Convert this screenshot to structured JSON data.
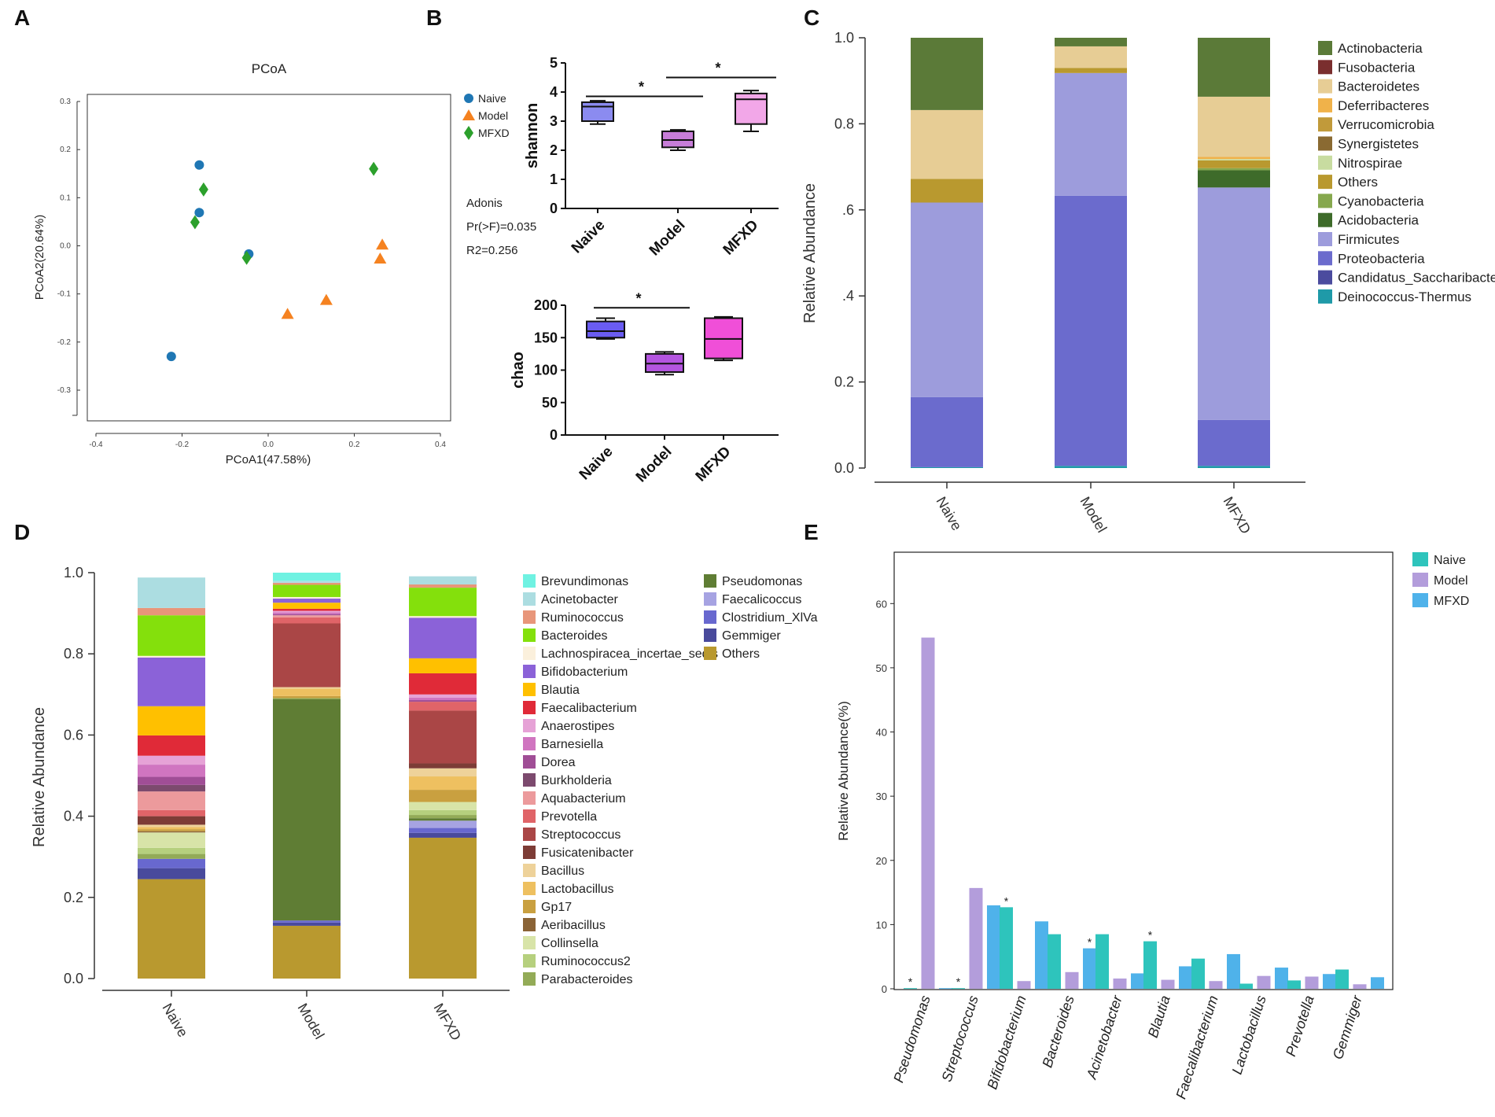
{
  "figure": {
    "panel_letters": [
      "A",
      "B",
      "C",
      "D",
      "E"
    ]
  },
  "chart_data": [
    {
      "id": "A",
      "type": "scatter",
      "title": "PCoA",
      "xlabel": "PCoA1(47.58%)",
      "ylabel": "PCoA2(20.64%)",
      "xlim": [
        -0.4,
        0.4
      ],
      "ylim": [
        -0.35,
        0.32
      ],
      "x_ticks": [
        -0.4,
        -0.2,
        0.0,
        0.2,
        0.4
      ],
      "x_tick_labels": [
        "-0.4",
        "-0.2",
        "0.0",
        "0.2",
        "0.4"
      ],
      "y_ticks": [
        0.3,
        0.2,
        0.1,
        0.0,
        -0.1,
        -0.2,
        -0.3
      ],
      "y_tick_labels": [
        "0.3",
        "0.2",
        "0.1",
        "0.0",
        "-0.1",
        "-0.2",
        "-0.3"
      ],
      "legend_position": "top-right-outside",
      "series": [
        {
          "name": "Naive",
          "marker": "circle",
          "color": "#1f77b4",
          "x": [
            -0.16,
            -0.16,
            -0.045,
            -0.225
          ],
          "y": [
            0.168,
            0.069,
            -0.017,
            -0.23
          ]
        },
        {
          "name": "Model",
          "marker": "triangle",
          "color": "#f58220",
          "x": [
            0.265,
            0.26,
            0.045,
            0.135
          ],
          "y": [
            0.002,
            -0.027,
            -0.142,
            -0.113
          ]
        },
        {
          "name": "MFXD",
          "marker": "diamond",
          "color": "#2ca02c",
          "x": [
            -0.15,
            -0.17,
            -0.05,
            0.245
          ],
          "y": [
            0.117,
            0.049,
            -0.025,
            0.16
          ]
        }
      ],
      "annotation": [
        "Adonis",
        "Pr(>F)=0.035",
        "R2=0.256"
      ]
    },
    {
      "id": "B-top",
      "type": "box",
      "ylabel": "shannon",
      "ylim": [
        0,
        5
      ],
      "y_ticks": [
        0,
        1,
        2,
        3,
        4,
        5
      ],
      "categories": [
        "Naive",
        "Model",
        "MFXD"
      ],
      "boxes": [
        {
          "name": "Naive",
          "color": "#8b8bf0",
          "min": 2.9,
          "q1": 3.0,
          "median": 3.5,
          "q3": 3.65,
          "max": 3.7
        },
        {
          "name": "Model",
          "color": "#c77dd8",
          "min": 2.0,
          "q1": 2.1,
          "median": 2.35,
          "q3": 2.65,
          "max": 2.7
        },
        {
          "name": "MFXD",
          "color": "#f2a7e8",
          "min": 2.65,
          "q1": 2.9,
          "median": 3.75,
          "q3": 3.95,
          "max": 4.05
        }
      ],
      "significance": [
        {
          "from": "Naive",
          "to": "Model",
          "y": 3.85,
          "label": "*"
        },
        {
          "from": "Model",
          "to": "MFXD",
          "y": 4.5,
          "label": "*"
        }
      ]
    },
    {
      "id": "B-bottom",
      "type": "box",
      "ylabel": "chao",
      "ylim": [
        0,
        200
      ],
      "y_ticks": [
        0,
        50,
        100,
        150,
        200
      ],
      "categories": [
        "Naive",
        "Model",
        "MFXD"
      ],
      "boxes": [
        {
          "name": "Naive",
          "color": "#6a5cf2",
          "min": 148,
          "q1": 150,
          "median": 160,
          "q3": 175,
          "max": 180
        },
        {
          "name": "Model",
          "color": "#b455e0",
          "min": 93,
          "q1": 97,
          "median": 110,
          "q3": 125,
          "max": 128
        },
        {
          "name": "MFXD",
          "color": "#f04fd8",
          "min": 115,
          "q1": 118,
          "median": 148,
          "q3": 180,
          "max": 182
        }
      ],
      "significance": [
        {
          "from": "Naive",
          "to": "Model",
          "y": 196,
          "label": "*"
        }
      ]
    },
    {
      "id": "C",
      "type": "bar",
      "stacked": true,
      "ylabel": "Relative Abundance",
      "ylim": [
        0,
        1
      ],
      "y_ticks": [
        0,
        0.2,
        0.4,
        0.6,
        0.8,
        1.0
      ],
      "y_tick_labels": [
        "0.0",
        "0.2",
        ".4",
        ".6",
        "0.8",
        "1.0"
      ],
      "categories": [
        "Naive",
        "Model",
        "MFXD"
      ],
      "legend_position": "right",
      "series": [
        {
          "name": "Actinobacteria",
          "color": "#5b7a38",
          "values": [
            0.168,
            0.02,
            0.137
          ]
        },
        {
          "name": "Fusobacteria",
          "color": "#7a2e2e",
          "values": [
            0.0,
            0.0,
            0.0
          ]
        },
        {
          "name": "Bacteroidetes",
          "color": "#e7cd95",
          "values": [
            0.16,
            0.05,
            0.14
          ]
        },
        {
          "name": "Deferribacteres",
          "color": "#f0b24a",
          "values": [
            0.0,
            0.0,
            0.005
          ]
        },
        {
          "name": "Verrucomicrobia",
          "color": "#c19a3a",
          "values": [
            0.0,
            0.0,
            0.0
          ]
        },
        {
          "name": "Synergistetes",
          "color": "#8a6a32",
          "values": [
            0.0,
            0.0,
            0.0
          ]
        },
        {
          "name": "Nitrospirae",
          "color": "#c8dca0",
          "values": [
            0.0,
            0.0,
            0.003
          ]
        },
        {
          "name": "Others",
          "color": "#b9992f",
          "values": [
            0.055,
            0.012,
            0.018
          ]
        },
        {
          "name": "Cyanobacteria",
          "color": "#86a84e",
          "values": [
            0.0,
            0.0,
            0.005
          ]
        },
        {
          "name": "Acidobacteria",
          "color": "#3e6b2a",
          "values": [
            0.0,
            0.0,
            0.04
          ]
        },
        {
          "name": "Firmicutes",
          "color": "#9d9cdc",
          "values": [
            0.452,
            0.285,
            0.54
          ]
        },
        {
          "name": "Proteobacteria",
          "color": "#6b6bcd",
          "values": [
            0.163,
            0.628,
            0.107
          ]
        },
        {
          "name": "Candidatus_Saccharibacteria",
          "color": "#4b4b9e",
          "values": [
            0.0,
            0.0,
            0.0
          ]
        },
        {
          "name": "Deinococcus-Thermus",
          "color": "#1f9aa8",
          "values": [
            0.002,
            0.005,
            0.005
          ]
        }
      ]
    },
    {
      "id": "D",
      "type": "bar",
      "stacked": true,
      "ylabel": "Relative Abundance",
      "ylim": [
        0,
        1
      ],
      "y_ticks": [
        0,
        0.2,
        0.4,
        0.6,
        0.8,
        1.0
      ],
      "y_tick_labels": [
        "0.0",
        "0.2",
        "0.4",
        "0.6",
        "0.8",
        "1.0"
      ],
      "categories": [
        "Naive",
        "Model",
        "MFXD"
      ],
      "legend_position": "right",
      "series": [
        {
          "name": "Brevundimonas",
          "color": "#6ff2e2",
          "values": [
            0.0,
            0.02,
            0.0
          ]
        },
        {
          "name": "Acinetobacter",
          "color": "#acdde1",
          "values": [
            0.075,
            0.005,
            0.02
          ]
        },
        {
          "name": "Ruminococcus",
          "color": "#e8967a",
          "values": [
            0.018,
            0.005,
            0.008
          ]
        },
        {
          "name": "Bacteroides",
          "color": "#84e00c",
          "values": [
            0.1,
            0.03,
            0.07
          ]
        },
        {
          "name": "Lachnospiracea_incertae_sedis",
          "color": "#fbf0dc",
          "values": [
            0.004,
            0.004,
            0.004
          ]
        },
        {
          "name": "Bifidobacterium",
          "color": "#8b62d8",
          "values": [
            0.12,
            0.01,
            0.1
          ]
        },
        {
          "name": "Blautia",
          "color": "#ffc000",
          "values": [
            0.072,
            0.015,
            0.037
          ]
        },
        {
          "name": "Faecalibacterium",
          "color": "#e02a38",
          "values": [
            0.05,
            0.005,
            0.052
          ]
        },
        {
          "name": "Anaerostipes",
          "color": "#e6a2d6",
          "values": [
            0.022,
            0.004,
            0.008
          ]
        },
        {
          "name": "Barnesiella",
          "color": "#d075c0",
          "values": [
            0.03,
            0.004,
            0.006
          ]
        },
        {
          "name": "Dorea",
          "color": "#a04e96",
          "values": [
            0.02,
            0.003,
            0.004
          ]
        },
        {
          "name": "Burkholderia",
          "color": "#7c4a6e",
          "values": [
            0.016,
            0.0,
            0.0
          ]
        },
        {
          "name": "Aquabacterium",
          "color": "#ec9a9c",
          "values": [
            0.046,
            0.005,
            0.0
          ]
        },
        {
          "name": "Prevotella",
          "color": "#e06468",
          "values": [
            0.015,
            0.015,
            0.022
          ]
        },
        {
          "name": "Streptococcus",
          "color": "#aa4646",
          "values": [
            0.0,
            0.157,
            0.13
          ]
        },
        {
          "name": "Fusicatenibacter",
          "color": "#7d3c36",
          "values": [
            0.021,
            0.0,
            0.012
          ]
        },
        {
          "name": "Bacillus",
          "color": "#eed29a",
          "values": [
            0.006,
            0.004,
            0.02
          ]
        },
        {
          "name": "Lactobacillus",
          "color": "#eec060",
          "values": [
            0.005,
            0.018,
            0.033
          ]
        },
        {
          "name": "Gp17",
          "color": "#c9a040",
          "values": [
            0.005,
            0.005,
            0.03
          ]
        },
        {
          "name": "Aeribacillus",
          "color": "#8a6336",
          "values": [
            0.003,
            0.0,
            0.0
          ]
        },
        {
          "name": "Collinsella",
          "color": "#d8e4a8",
          "values": [
            0.038,
            0.0,
            0.02
          ]
        },
        {
          "name": "Ruminococcus2",
          "color": "#b6d07e",
          "values": [
            0.015,
            0.0,
            0.012
          ]
        },
        {
          "name": "Parabacteroides",
          "color": "#93ab57",
          "values": [
            0.012,
            0.003,
            0.008
          ]
        },
        {
          "name": "Pseudomonas",
          "color": "#5f7d34",
          "values": [
            0.0,
            0.545,
            0.006
          ]
        },
        {
          "name": "Faecalicoccus",
          "color": "#a6a3e2",
          "values": [
            0.0,
            0.0,
            0.018
          ]
        },
        {
          "name": "Clostridium_XlVa",
          "color": "#6868cf",
          "values": [
            0.023,
            0.005,
            0.012
          ]
        },
        {
          "name": "Gemmiger",
          "color": "#494a9c",
          "values": [
            0.027,
            0.008,
            0.012
          ]
        },
        {
          "name": "Others",
          "color": "#b9992f",
          "values": [
            0.245,
            0.13,
            0.347
          ]
        }
      ]
    },
    {
      "id": "E",
      "type": "bar",
      "ylabel": "Relative Abundance(%)",
      "ylim": [
        0,
        68
      ],
      "y_ticks": [
        0,
        10,
        20,
        30,
        40,
        50,
        60
      ],
      "categories": [
        "Pseudomonas",
        "Streptococcus",
        "Bifidobacterium",
        "Bacteroides",
        "Acinetobacter",
        "Blautia",
        "Faecalibacterium",
        "Lactobacillus",
        "Prevotella",
        "Gemmiger"
      ],
      "legend_position": "top-right-outside",
      "series": [
        {
          "name": "Naive",
          "color": "#2ec4bc",
          "values": [
            0.1,
            0.1,
            12.7,
            8.5,
            8.5,
            7.4,
            4.7,
            0.8,
            1.3,
            3.0
          ]
        },
        {
          "name": "Model",
          "color": "#b39ddb",
          "values": [
            54.7,
            15.7,
            1.2,
            2.6,
            1.6,
            1.4,
            1.2,
            2.0,
            1.9,
            0.7
          ]
        },
        {
          "name": "MFXD",
          "color": "#4fb2ea",
          "values": [
            0.1,
            13.0,
            10.5,
            6.3,
            2.4,
            3.5,
            5.4,
            3.3,
            2.3,
            1.8
          ]
        }
      ],
      "significance": [
        {
          "category": "Pseudomonas",
          "series": "Naive",
          "label": "*"
        },
        {
          "category": "Streptococcus",
          "series": "Naive",
          "label": "*"
        },
        {
          "category": "Bifidobacterium",
          "series": "Naive",
          "label": "*"
        },
        {
          "category": "Bacteroides",
          "series": "MFXD",
          "label": "*"
        },
        {
          "category": "Blautia",
          "series": "Naive",
          "label": "*"
        }
      ]
    }
  ]
}
